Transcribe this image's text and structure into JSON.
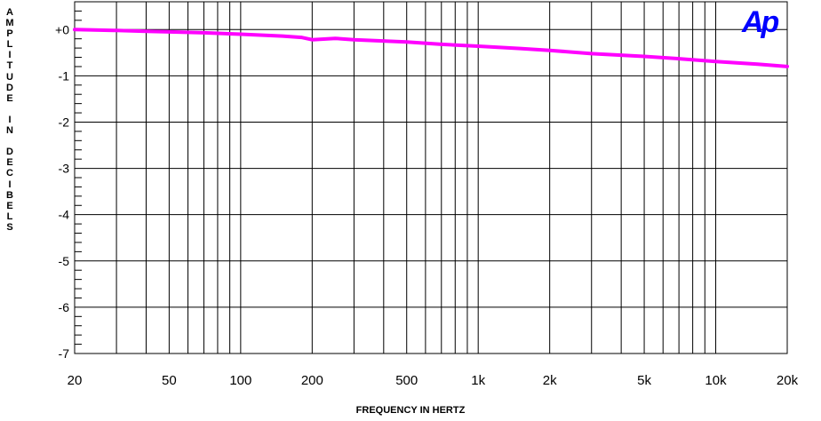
{
  "chart_data": {
    "type": "line",
    "title": "",
    "xlabel": "FREQUENCY IN HERTZ",
    "ylabel": "AMPLITUDE IN DECIBELS",
    "xscale": "log",
    "xlim": [
      20,
      20000
    ],
    "ylim": [
      -7,
      0.6
    ],
    "x_tick_values": [
      20,
      50,
      100,
      200,
      500,
      1000,
      2000,
      5000,
      10000,
      20000
    ],
    "x_tick_labels": [
      "20",
      "50",
      "100",
      "200",
      "500",
      "1k",
      "2k",
      "5k",
      "10k",
      "20k"
    ],
    "y_tick_values": [
      0,
      -1,
      -2,
      -3,
      -4,
      -5,
      -6,
      -7
    ],
    "y_tick_labels": [
      "+0",
      "-1",
      "-2",
      "-3",
      "-4",
      "-5",
      "-6",
      "-7"
    ],
    "grid": true,
    "series": [
      {
        "color": "#ff00ff",
        "x": [
          20,
          30,
          40,
          50,
          70,
          100,
          150,
          180,
          200,
          250,
          300,
          500,
          700,
          1000,
          1500,
          2000,
          3000,
          5000,
          7000,
          10000,
          15000,
          20000
        ],
        "y": [
          0.0,
          -0.02,
          -0.04,
          -0.05,
          -0.07,
          -0.1,
          -0.14,
          -0.17,
          -0.22,
          -0.19,
          -0.22,
          -0.27,
          -0.32,
          -0.36,
          -0.41,
          -0.45,
          -0.52,
          -0.58,
          -0.63,
          -0.69,
          -0.75,
          -0.8
        ]
      }
    ]
  },
  "logo": {
    "text": "Ap",
    "color": "#0000ff"
  }
}
